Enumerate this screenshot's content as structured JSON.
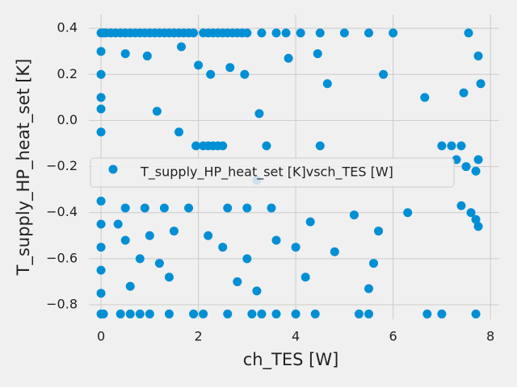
{
  "chart_data": {
    "type": "scatter",
    "xlabel": "ch_TES [W]",
    "ylabel": "T_supply_HP_heat_set [K]",
    "xlim": [
      -0.25,
      8.18
    ],
    "ylim": [
      -0.863,
      0.46
    ],
    "xticks": [
      0,
      2,
      4,
      6,
      8
    ],
    "yticks": [
      0.4,
      0.2,
      {
        "value": 0.0,
        "label": "0.0"
      },
      {
        "value": -0.2,
        "label": "−0.2"
      },
      {
        "value": -0.4,
        "label": "−0.4"
      },
      {
        "value": -0.6,
        "label": "−0.6"
      },
      {
        "value": -0.8,
        "label": "−0.8"
      }
    ],
    "grid": true,
    "legend": "center",
    "series": [
      {
        "name": "T_supply_HP_heat_set [K]vsch_TES [W]",
        "color": "#008fd5",
        "x": [
          0,
          0.05,
          0.1,
          0.2,
          0.3,
          0.4,
          0.5,
          0.6,
          0.7,
          0.8,
          0.9,
          1.0,
          1.1,
          1.2,
          1.3,
          1.4,
          1.5,
          1.6,
          1.7,
          1.8,
          1.9,
          2.1,
          2.2,
          2.3,
          2.4,
          2.5,
          2.6,
          2.7,
          2.8,
          2.9,
          3.0,
          3.3,
          3.6,
          3.8,
          4.1,
          4.5,
          5.0,
          5.5,
          6.0,
          7.55,
          0,
          0.05,
          0.4,
          0.6,
          0.8,
          1.0,
          1.4,
          1.9,
          2.1,
          2.6,
          3.1,
          3.3,
          3.6,
          4.0,
          4.4,
          5.3,
          5.5,
          6.7,
          7.0,
          7.7,
          0,
          0,
          0,
          0,
          0,
          0,
          0,
          0,
          0,
          0,
          1.95,
          2.1,
          2.2,
          2.3,
          2.4,
          2.5,
          3.4,
          7.0,
          7.2,
          7.4,
          0.5,
          0.95,
          1.65,
          2.0,
          2.25,
          2.65,
          2.95,
          3.85,
          4.45,
          4.65,
          5.8,
          6.65,
          7.45,
          7.75,
          7.8,
          1.15,
          3.25,
          1.6,
          4.5,
          3.2,
          7.3,
          7.5,
          7.7,
          7.75,
          7.4,
          7.6,
          7.7,
          7.75,
          0.5,
          0.9,
          1.3,
          1.8,
          2.6,
          3.0,
          3.5,
          0.35,
          0.5,
          1.0,
          1.5,
          0.8,
          1.2,
          2.2,
          2.5,
          3.0,
          3.6,
          4.0,
          4.3,
          5.2,
          5.7,
          6.3,
          0.6,
          1.4,
          2.8,
          3.2,
          4.2,
          5.5,
          5.6,
          4.8
        ],
        "values": [
          0.38,
          0.38,
          0.38,
          0.38,
          0.38,
          0.38,
          0.38,
          0.38,
          0.38,
          0.38,
          0.38,
          0.38,
          0.38,
          0.38,
          0.38,
          0.38,
          0.38,
          0.38,
          0.38,
          0.38,
          0.38,
          0.38,
          0.38,
          0.38,
          0.38,
          0.38,
          0.38,
          0.38,
          0.38,
          0.38,
          0.38,
          0.38,
          0.38,
          0.38,
          0.38,
          0.38,
          0.38,
          0.38,
          0.38,
          0.38,
          -0.84,
          -0.84,
          -0.84,
          -0.84,
          -0.84,
          -0.84,
          -0.84,
          -0.84,
          -0.84,
          -0.84,
          -0.84,
          -0.84,
          -0.84,
          -0.84,
          -0.84,
          -0.84,
          -0.84,
          -0.84,
          -0.84,
          -0.84,
          0.3,
          0.2,
          0.1,
          0.05,
          -0.05,
          -0.35,
          -0.45,
          -0.55,
          -0.65,
          -0.75,
          -0.11,
          -0.11,
          -0.11,
          -0.11,
          -0.11,
          -0.11,
          -0.11,
          -0.11,
          -0.11,
          -0.11,
          0.29,
          0.28,
          0.32,
          0.24,
          0.2,
          0.23,
          0.2,
          0.27,
          0.29,
          0.16,
          0.2,
          0.1,
          0.12,
          0.28,
          0.16,
          0.04,
          0.03,
          -0.05,
          -0.11,
          -0.26,
          -0.17,
          -0.2,
          -0.22,
          -0.17,
          -0.37,
          -0.4,
          -0.43,
          -0.46,
          -0.38,
          -0.38,
          -0.38,
          -0.38,
          -0.38,
          -0.38,
          -0.38,
          -0.45,
          -0.52,
          -0.5,
          -0.48,
          -0.6,
          -0.62,
          -0.5,
          -0.55,
          -0.6,
          -0.52,
          -0.55,
          -0.44,
          -0.41,
          -0.48,
          -0.4,
          -0.72,
          -0.68,
          -0.7,
          -0.74,
          -0.68,
          -0.73,
          -0.62,
          -0.57
        ]
      }
    ]
  }
}
